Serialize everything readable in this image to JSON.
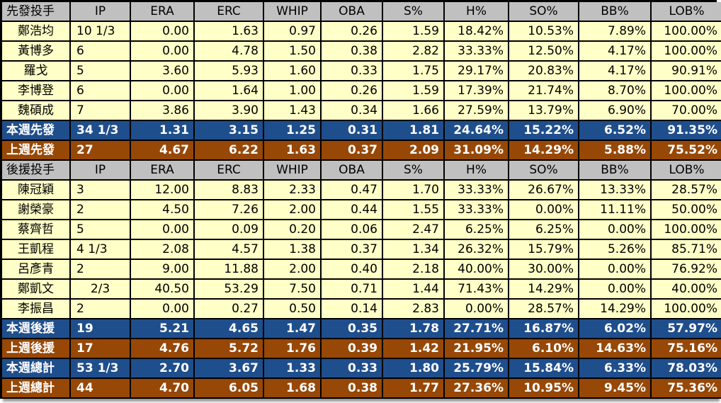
{
  "columns": [
    "IP",
    "ERA",
    "ERC",
    "WHIP",
    "OBA",
    "S%",
    "H%",
    "SO%",
    "BB%",
    "LOB%"
  ],
  "starters": {
    "header": "先發投手",
    "players": [
      {
        "name": "鄭浩均",
        "ip": "10 1/3",
        "era": "0.00",
        "erc": "1.63",
        "whip": "0.97",
        "oba": "0.26",
        "s": "1.59",
        "h": "18.42%",
        "so": "10.53%",
        "bb": "7.89%",
        "lob": "100.00%"
      },
      {
        "name": "黃博多",
        "ip": "6",
        "era": "0.00",
        "erc": "4.78",
        "whip": "1.50",
        "oba": "0.38",
        "s": "2.82",
        "h": "33.33%",
        "so": "12.50%",
        "bb": "4.17%",
        "lob": "100.00%"
      },
      {
        "name": "羅戈",
        "ip": "5",
        "era": "3.60",
        "erc": "5.93",
        "whip": "1.60",
        "oba": "0.33",
        "s": "1.75",
        "h": "29.17%",
        "so": "20.83%",
        "bb": "4.17%",
        "lob": "90.91%"
      },
      {
        "name": "李博登",
        "ip": "6",
        "era": "0.00",
        "erc": "1.64",
        "whip": "1.00",
        "oba": "0.26",
        "s": "1.59",
        "h": "17.39%",
        "so": "21.74%",
        "bb": "8.70%",
        "lob": "100.00%"
      },
      {
        "name": "魏碩成",
        "ip": "7",
        "era": "3.86",
        "erc": "3.90",
        "whip": "1.43",
        "oba": "0.34",
        "s": "1.66",
        "h": "27.59%",
        "so": "13.79%",
        "bb": "6.90%",
        "lob": "70.00%"
      }
    ],
    "this_week": {
      "name": "本週先發",
      "ip": "34 1/3",
      "era": "1.31",
      "erc": "3.15",
      "whip": "1.25",
      "oba": "0.31",
      "s": "1.81",
      "h": "24.64%",
      "so": "15.22%",
      "bb": "6.52%",
      "lob": "91.35%"
    },
    "last_week": {
      "name": "上週先發",
      "ip": "27",
      "era": "4.67",
      "erc": "6.22",
      "whip": "1.63",
      "oba": "0.37",
      "s": "2.09",
      "h": "31.09%",
      "so": "14.29%",
      "bb": "5.88%",
      "lob": "75.52%"
    }
  },
  "relievers": {
    "header": "後援投手",
    "players": [
      {
        "name": "陳冠穎",
        "ip": "3",
        "era": "12.00",
        "erc": "8.83",
        "whip": "2.33",
        "oba": "0.47",
        "s": "1.70",
        "h": "33.33%",
        "so": "26.67%",
        "bb": "13.33%",
        "lob": "28.57%"
      },
      {
        "name": "謝榮豪",
        "ip": "2",
        "era": "4.50",
        "erc": "7.26",
        "whip": "2.00",
        "oba": "0.44",
        "s": "1.55",
        "h": "33.33%",
        "so": "0.00%",
        "bb": "11.11%",
        "lob": "50.00%"
      },
      {
        "name": "蔡齊哲",
        "ip": "5",
        "era": "0.00",
        "erc": "0.09",
        "whip": "0.20",
        "oba": "0.06",
        "s": "2.47",
        "h": "6.25%",
        "so": "6.25%",
        "bb": "0.00%",
        "lob": "100.00%"
      },
      {
        "name": "王凱程",
        "ip": "4 1/3",
        "era": "2.08",
        "erc": "4.57",
        "whip": "1.38",
        "oba": "0.37",
        "s": "1.34",
        "h": "26.32%",
        "so": "15.79%",
        "bb": "5.26%",
        "lob": "85.71%"
      },
      {
        "name": "呂彥青",
        "ip": "2",
        "era": "9.00",
        "erc": "11.88",
        "whip": "2.00",
        "oba": "0.40",
        "s": "2.18",
        "h": "40.00%",
        "so": "30.00%",
        "bb": "0.00%",
        "lob": "76.92%"
      },
      {
        "name": "鄭凱文",
        "ip": "2/3",
        "era": "40.50",
        "erc": "53.29",
        "whip": "7.50",
        "oba": "0.71",
        "s": "1.44",
        "h": "71.43%",
        "so": "14.29%",
        "bb": "0.00%",
        "lob": "40.00%"
      },
      {
        "name": "李振昌",
        "ip": "2",
        "era": "0.00",
        "erc": "0.27",
        "whip": "0.50",
        "oba": "0.14",
        "s": "2.83",
        "h": "0.00%",
        "so": "28.57%",
        "bb": "14.29%",
        "lob": "100.00%"
      }
    ],
    "this_week": {
      "name": "本週後援",
      "ip": "19",
      "era": "5.21",
      "erc": "4.65",
      "whip": "1.47",
      "oba": "0.35",
      "s": "1.78",
      "h": "27.71%",
      "so": "16.87%",
      "bb": "6.02%",
      "lob": "57.97%"
    },
    "last_week": {
      "name": "上週後援",
      "ip": "17",
      "era": "4.76",
      "erc": "5.72",
      "whip": "1.76",
      "oba": "0.39",
      "s": "1.42",
      "h": "21.95%",
      "so": "6.10%",
      "bb": "14.63%",
      "lob": "75.16%"
    }
  },
  "totals": {
    "this_week": {
      "name": "本週總計",
      "ip": "53 1/3",
      "era": "2.70",
      "erc": "3.67",
      "whip": "1.33",
      "oba": "0.33",
      "s": "1.80",
      "h": "25.79%",
      "so": "15.84%",
      "bb": "6.33%",
      "lob": "78.03%"
    },
    "last_week": {
      "name": "上週總計",
      "ip": "44",
      "era": "4.70",
      "erc": "6.05",
      "whip": "1.68",
      "oba": "0.38",
      "s": "1.77",
      "h": "27.36%",
      "so": "10.95%",
      "bb": "9.45%",
      "lob": "75.36%"
    }
  },
  "colors": {
    "header_bg": "#c0c0c0",
    "player_bg": "#ffffc8",
    "this_week_bg": "#1f4e8c",
    "last_week_bg": "#974806",
    "grid": "#000000"
  }
}
